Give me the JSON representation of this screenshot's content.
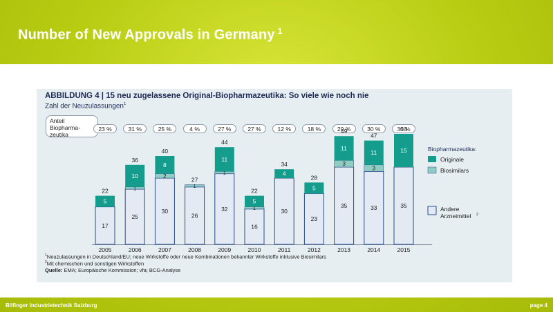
{
  "slide": {
    "title": "Number of New Approvals in Germany",
    "title_sup": "1",
    "footer_left": "Bilfinger Industrietechnik Salzburg",
    "footer_right": "page 4"
  },
  "figure": {
    "title": "ABBILDUNG 4 | 15 neu zugelassene Original-Biopharmazeutika: So viele wie noch nie",
    "subtitle": "Zahl der Neuzulassungen",
    "subtitle_sup": "1",
    "share_label": "Anteil\nBiopharma-\nzeutika",
    "shares": [
      "23 %",
      "31 %",
      "25 %",
      "4 %",
      "27 %",
      "27 %",
      "12 %",
      "18 %",
      "29 %",
      "30 %",
      "30 %"
    ],
    "legend_title": "Biopharmazeutika:",
    "legend_originale": "Originale",
    "legend_biosimilars": "Biosimilars",
    "legend_andere_1": "Andere",
    "legend_andere_2": "Arzneimittel",
    "legend_andere_sup": "2",
    "footnote1_sup": "1",
    "footnote1": "Neuzulassungen in Deutschland/EU; neue Wirkstoffe oder neue Kombinationen bekannter Wirkstoffe inklusive Biosimilars",
    "footnote2_sup": "2",
    "footnote2": "Mit chemischen und sonstigen Wirkstoffen",
    "source_label": "Quelle:",
    "source_text": "EMA; Europäische Kommission; vfa; BCG-Analyse"
  },
  "colors": {
    "originale": "#149c8c",
    "biosimilars": "#8fcdc4",
    "andere": "#e4eaf3",
    "outline": "#2a4c8c"
  },
  "chart_data": {
    "type": "bar",
    "stacked": true,
    "title": "ABBILDUNG 4 | 15 neu zugelassene Original-Biopharmazeutika: So viele wie noch nie",
    "ylabel": "Zahl der Neuzulassungen",
    "categories": [
      "2005",
      "2006",
      "2007",
      "2008",
      "2009",
      "2010",
      "2011",
      "2012",
      "2013",
      "2014",
      "2015"
    ],
    "series": [
      {
        "name": "Andere Arzneimittel",
        "values": [
          17,
          25,
          30,
          26,
          32,
          16,
          30,
          23,
          35,
          33,
          35
        ]
      },
      {
        "name": "Biosimilars",
        "values": [
          0,
          1,
          2,
          1,
          1,
          1,
          0,
          0,
          3,
          3,
          0
        ]
      },
      {
        "name": "Originale",
        "values": [
          5,
          10,
          8,
          0,
          11,
          5,
          4,
          5,
          11,
          11,
          15
        ]
      }
    ],
    "totals": [
      22,
      36,
      40,
      27,
      44,
      22,
      34,
      28,
      49,
      47,
      50
    ],
    "ylim": [
      0,
      50
    ]
  }
}
